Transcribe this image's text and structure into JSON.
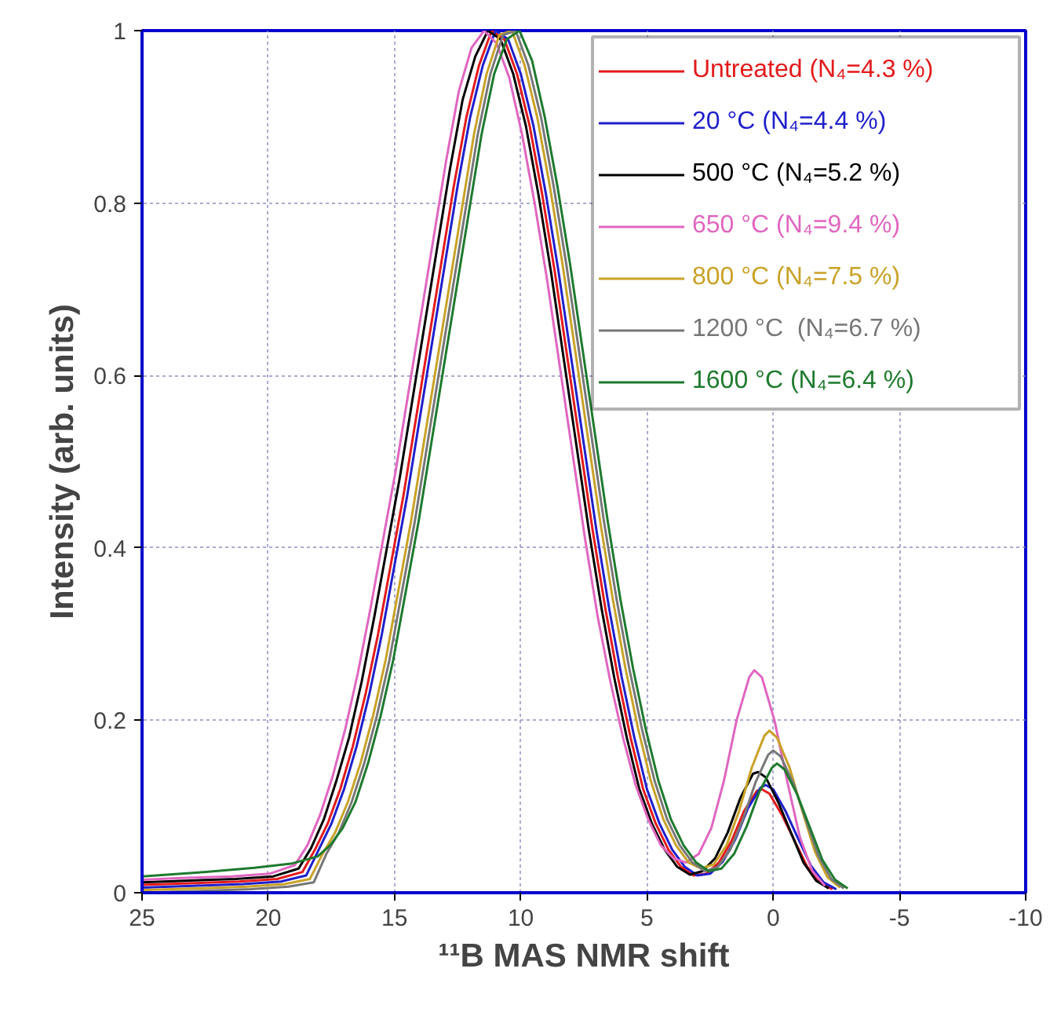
{
  "chart_data": {
    "type": "line",
    "xlabel": "¹¹B MAS NMR shift",
    "ylabel": "Intensity (arb. units)",
    "x": [
      25,
      23,
      21,
      19.5,
      18.5,
      18,
      17.5,
      17,
      16.5,
      16,
      15.5,
      15,
      14.5,
      14,
      13.5,
      13,
      12.5,
      12,
      11.5,
      11,
      10.5,
      10,
      9.5,
      9,
      8.5,
      8,
      7.5,
      7,
      6.5,
      6,
      5.5,
      5,
      4.5,
      4,
      3.5,
      3,
      2.5,
      2,
      1.5,
      1,
      0.5,
      0.3,
      0,
      -0.5,
      -1,
      -1.5,
      -2,
      -2.5
    ],
    "series": [
      {
        "name": "Untreated (N₄=4.3 %)",
        "color": "#e31a1c",
        "x": [
          25,
          23.15,
          21.15,
          19.65,
          18.65,
          18.15,
          17.65,
          17.15,
          16.65,
          16.15,
          15.65,
          15.15,
          14.65,
          14.15,
          13.65,
          13.15,
          12.65,
          12.15,
          11.65,
          11.15,
          10.65,
          10.15,
          9.65,
          9.15,
          8.65,
          8.15,
          7.65,
          7.15,
          6.65,
          6.15,
          5.65,
          5.15,
          4.65,
          4.15,
          3.65,
          3.15,
          2.65,
          2.15,
          1.65,
          1.15,
          0.65,
          0.45,
          0.15,
          -0.35,
          -0.85,
          -1.35,
          -1.85,
          -2.35
        ],
        "values": [
          0.009,
          0.011,
          0.013,
          0.016,
          0.024,
          0.05,
          0.08,
          0.12,
          0.17,
          0.23,
          0.3,
          0.38,
          0.46,
          0.55,
          0.64,
          0.73,
          0.82,
          0.9,
          0.96,
          1.0,
          0.99,
          0.95,
          0.89,
          0.81,
          0.72,
          0.62,
          0.52,
          0.42,
          0.33,
          0.25,
          0.18,
          0.12,
          0.08,
          0.05,
          0.03,
          0.02,
          0.022,
          0.035,
          0.06,
          0.095,
          0.118,
          0.12,
          0.115,
          0.09,
          0.06,
          0.03,
          0.012,
          0.004
        ]
      },
      {
        "name": "20 °C (N₄=4.4 %)",
        "color": "#1f1fcc",
        "values": [
          0.006,
          0.008,
          0.01,
          0.013,
          0.02,
          0.05,
          0.08,
          0.12,
          0.17,
          0.23,
          0.3,
          0.38,
          0.46,
          0.55,
          0.64,
          0.73,
          0.82,
          0.9,
          0.96,
          1.0,
          0.99,
          0.95,
          0.89,
          0.81,
          0.72,
          0.62,
          0.52,
          0.42,
          0.33,
          0.25,
          0.18,
          0.12,
          0.08,
          0.05,
          0.03,
          0.02,
          0.022,
          0.036,
          0.062,
          0.098,
          0.122,
          0.125,
          0.12,
          0.094,
          0.062,
          0.031,
          0.012,
          0.004
        ]
      },
      {
        "name": "500 °C (N₄=5.2 %)",
        "color": "#000000",
        "x": [
          25,
          23.3,
          21.3,
          19.8,
          18.8,
          18.3,
          17.8,
          17.3,
          16.8,
          16.3,
          15.8,
          15.3,
          14.8,
          14.3,
          13.8,
          13.3,
          12.8,
          12.3,
          11.8,
          11.3,
          10.8,
          10.3,
          9.8,
          9.3,
          8.8,
          8.3,
          7.8,
          7.3,
          6.8,
          6.3,
          5.8,
          5.3,
          4.8,
          4.3,
          3.8,
          3.3,
          2.8,
          2.3,
          1.8,
          1.3,
          0.8,
          0.6,
          0.3,
          -0.2,
          -0.7,
          -1.2,
          -1.7,
          -2.2
        ],
        "values": [
          0.012,
          0.014,
          0.016,
          0.019,
          0.028,
          0.052,
          0.085,
          0.13,
          0.18,
          0.245,
          0.32,
          0.4,
          0.48,
          0.57,
          0.66,
          0.75,
          0.84,
          0.92,
          0.97,
          1.0,
          0.99,
          0.95,
          0.89,
          0.81,
          0.72,
          0.62,
          0.52,
          0.42,
          0.33,
          0.25,
          0.18,
          0.12,
          0.08,
          0.05,
          0.03,
          0.021,
          0.025,
          0.04,
          0.07,
          0.11,
          0.138,
          0.14,
          0.134,
          0.105,
          0.07,
          0.035,
          0.014,
          0.005
        ]
      },
      {
        "name": "650 °C (N₄=9.4 %)",
        "color": "#e066c0",
        "x": [
          25,
          23.45,
          21.45,
          19.95,
          18.95,
          18.45,
          17.95,
          17.45,
          16.95,
          16.45,
          15.95,
          15.45,
          14.95,
          14.45,
          13.95,
          13.45,
          12.95,
          12.45,
          11.95,
          11.45,
          10.95,
          10.45,
          9.95,
          9.45,
          8.95,
          8.45,
          7.95,
          7.45,
          6.95,
          6.45,
          5.95,
          5.45,
          4.95,
          4.45,
          3.95,
          3.45,
          2.95,
          2.45,
          1.95,
          1.45,
          0.95,
          0.75,
          0.45,
          -0.05,
          -0.55,
          -1.05,
          -1.55,
          -2.05
        ],
        "values": [
          0.015,
          0.017,
          0.019,
          0.022,
          0.032,
          0.055,
          0.09,
          0.135,
          0.19,
          0.255,
          0.33,
          0.41,
          0.49,
          0.58,
          0.67,
          0.76,
          0.85,
          0.93,
          0.98,
          1.0,
          0.985,
          0.945,
          0.88,
          0.8,
          0.71,
          0.61,
          0.51,
          0.41,
          0.32,
          0.245,
          0.18,
          0.125,
          0.085,
          0.055,
          0.04,
          0.035,
          0.045,
          0.075,
          0.13,
          0.2,
          0.25,
          0.258,
          0.25,
          0.2,
          0.13,
          0.065,
          0.025,
          0.008
        ]
      },
      {
        "name": "800 °C (N₄=7.5 %)",
        "color": "#c9a227",
        "x": [
          25,
          22.85,
          20.85,
          19.35,
          18.35,
          17.85,
          17.35,
          16.85,
          16.35,
          15.85,
          15.35,
          14.85,
          14.35,
          13.85,
          13.35,
          12.85,
          12.35,
          11.85,
          11.35,
          10.85,
          10.35,
          9.85,
          9.35,
          8.85,
          8.35,
          7.85,
          7.35,
          6.85,
          6.35,
          5.85,
          5.35,
          4.85,
          4.35,
          3.85,
          3.35,
          2.85,
          2.35,
          1.85,
          1.35,
          0.85,
          0.35,
          0.15,
          -0.15,
          -0.65,
          -1.15,
          -1.65,
          -2.15,
          -2.65
        ],
        "values": [
          0.003,
          0.005,
          0.007,
          0.01,
          0.016,
          0.045,
          0.07,
          0.105,
          0.15,
          0.205,
          0.27,
          0.35,
          0.43,
          0.52,
          0.61,
          0.7,
          0.79,
          0.88,
          0.95,
          0.995,
          1.0,
          0.96,
          0.9,
          0.82,
          0.73,
          0.63,
          0.53,
          0.43,
          0.34,
          0.26,
          0.19,
          0.13,
          0.085,
          0.055,
          0.035,
          0.028,
          0.033,
          0.055,
          0.095,
          0.145,
          0.182,
          0.188,
          0.18,
          0.145,
          0.095,
          0.048,
          0.018,
          0.006
        ]
      },
      {
        "name": "1200 °C  (N₄=6.7 %)",
        "color": "#777777",
        "x": [
          25,
          22.7,
          20.7,
          19.2,
          18.2,
          17.7,
          17.2,
          16.7,
          16.2,
          15.7,
          15.2,
          14.7,
          14.2,
          13.7,
          13.2,
          12.7,
          12.2,
          11.7,
          11.2,
          10.7,
          10.2,
          9.7,
          9.2,
          8.7,
          8.2,
          7.7,
          7.2,
          6.7,
          6.2,
          5.7,
          5.2,
          4.7,
          4.2,
          3.7,
          3.2,
          2.7,
          2.2,
          1.7,
          1.2,
          0.7,
          0.2,
          0,
          -0.3,
          -0.8,
          -1.3,
          -1.8,
          -2.3,
          -2.8
        ],
        "values": [
          0,
          0.002,
          0.004,
          0.007,
          0.012,
          0.045,
          0.07,
          0.105,
          0.15,
          0.205,
          0.27,
          0.35,
          0.43,
          0.52,
          0.61,
          0.7,
          0.79,
          0.88,
          0.95,
          0.995,
          1.0,
          0.96,
          0.9,
          0.82,
          0.73,
          0.63,
          0.53,
          0.43,
          0.34,
          0.26,
          0.19,
          0.13,
          0.085,
          0.055,
          0.035,
          0.025,
          0.03,
          0.05,
          0.085,
          0.128,
          0.16,
          0.165,
          0.158,
          0.127,
          0.084,
          0.042,
          0.016,
          0.005
        ]
      },
      {
        "name": "1600 °C (N₄=6.4 %)",
        "color": "#1e7a2e",
        "x": [
          25,
          22.55,
          20.55,
          19.05,
          18.05,
          17.55,
          17.05,
          16.55,
          16.05,
          15.55,
          15.05,
          14.55,
          14.05,
          13.55,
          13.05,
          12.55,
          12.05,
          11.55,
          11.05,
          10.55,
          10.05,
          9.55,
          9.05,
          8.55,
          8.05,
          7.55,
          7.05,
          6.55,
          6.05,
          5.55,
          5.05,
          4.55,
          4.05,
          3.55,
          3.05,
          2.55,
          2.05,
          1.55,
          1.05,
          0.55,
          0.05,
          -0.15,
          -0.45,
          -0.95,
          -1.45,
          -1.95,
          -2.45,
          -2.95
        ],
        "values": [
          0.019,
          0.024,
          0.029,
          0.034,
          0.042,
          0.055,
          0.075,
          0.105,
          0.15,
          0.205,
          0.27,
          0.35,
          0.43,
          0.52,
          0.61,
          0.7,
          0.79,
          0.88,
          0.95,
          0.99,
          1.0,
          0.965,
          0.9,
          0.82,
          0.73,
          0.63,
          0.53,
          0.43,
          0.34,
          0.26,
          0.19,
          0.13,
          0.085,
          0.055,
          0.035,
          0.025,
          0.028,
          0.045,
          0.077,
          0.117,
          0.145,
          0.15,
          0.143,
          0.114,
          0.076,
          0.038,
          0.015,
          0.005
        ]
      }
    ],
    "xlim": [
      25,
      -10
    ],
    "xticks": [
      25,
      20,
      15,
      10,
      5,
      0,
      -5,
      -10
    ],
    "ylim": [
      0,
      1
    ],
    "yticks": [
      0,
      0.2,
      0.4,
      0.6,
      0.8,
      1
    ],
    "grid": true,
    "legend": "top right",
    "line_style": "solid"
  }
}
